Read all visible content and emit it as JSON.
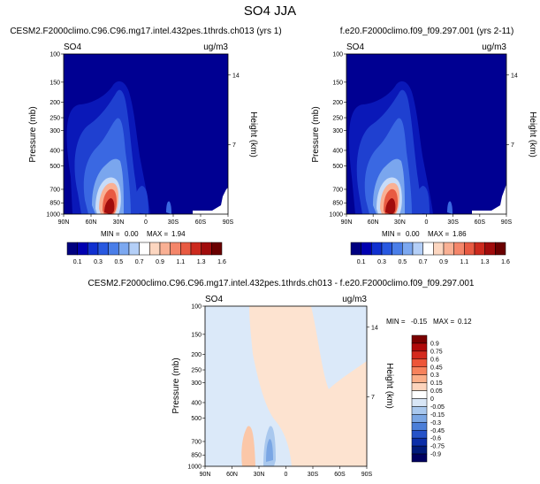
{
  "page_title": "SO4 JJA",
  "chart_data": [
    {
      "type": "heatmap",
      "title": "CESM2.F2000climo.C96.C96.mg17.intel.432pes.1thrds.ch013 (yrs 1)",
      "variable": "SO4",
      "units": "ug/m3",
      "ylabel": "Pressure (mb)",
      "ylabel_right": "Height (km)",
      "x_ticks": [
        "90N",
        "60N",
        "30N",
        "0",
        "30S",
        "60S",
        "90S"
      ],
      "y_ticks": [
        "100",
        "150",
        "200",
        "250",
        "300",
        "400",
        "500",
        "700",
        "850",
        "1000"
      ],
      "y_right_ticks": [
        "14",
        "7"
      ],
      "min_label": "MIN =",
      "min_value": "0.00",
      "max_label": "MAX =",
      "max_value": "1.94",
      "colorbar_levels": [
        "0.1",
        "0.3",
        "0.5",
        "0.7",
        "0.9",
        "1.1",
        "1.3",
        "1.6"
      ],
      "max_center": {
        "lat": 40,
        "p": 880
      }
    },
    {
      "type": "heatmap",
      "title": "f.e20.F2000climo.f09_f09.297.001 (yrs 2-11)",
      "variable": "SO4",
      "units": "ug/m3",
      "ylabel": "Pressure (mb)",
      "ylabel_right": "Height (km)",
      "x_ticks": [
        "90N",
        "60N",
        "30N",
        "0",
        "30S",
        "60S",
        "90S"
      ],
      "y_ticks": [
        "100",
        "150",
        "200",
        "250",
        "300",
        "400",
        "500",
        "700",
        "850",
        "1000"
      ],
      "y_right_ticks": [
        "14",
        "7"
      ],
      "min_label": "MIN =",
      "min_value": "0.00",
      "max_label": "MAX =",
      "max_value": "1.86",
      "colorbar_levels": [
        "0.1",
        "0.3",
        "0.5",
        "0.7",
        "0.9",
        "1.1",
        "1.3",
        "1.6"
      ],
      "max_center": {
        "lat": 40,
        "p": 880
      }
    },
    {
      "type": "heatmap",
      "title": "CESM2.F2000climo.C96.C96.mg17.intel.432pes.1thrds.ch013 - f.e20.F2000climo.f09_f09.297.001",
      "variable": "SO4",
      "units": "ug/m3",
      "ylabel": "Pressure (mb)",
      "ylabel_right": "Height (km)",
      "x_ticks": [
        "90N",
        "60N",
        "30N",
        "0",
        "30S",
        "60S",
        "90S"
      ],
      "y_ticks": [
        "100",
        "150",
        "200",
        "250",
        "300",
        "400",
        "500",
        "700",
        "850",
        "1000"
      ],
      "y_right_ticks": [
        "14",
        "7"
      ],
      "min_label": "MIN =",
      "min_value": "-0.15",
      "max_label": "MAX =",
      "max_value": "0.12",
      "colorbar_levels": [
        "0.9",
        "0.75",
        "0.6",
        "0.45",
        "0.3",
        "0.15",
        "0.05",
        "0",
        "-0.05",
        "-0.15",
        "-0.3",
        "-0.45",
        "-0.6",
        "-0.75",
        "-0.9"
      ]
    }
  ],
  "colors": {
    "background_panel": "#000092",
    "diff_positive": "#fde3d0",
    "diff_negative": "#dbe9f9",
    "seq": [
      "#000080",
      "#0000b0",
      "#1030d0",
      "#2858e0",
      "#4a7ee8",
      "#7ca8f0",
      "#b4cff7",
      "#ffffff",
      "#fcd6c0",
      "#f9b094",
      "#f4866a",
      "#e85a42",
      "#cc2a1e",
      "#a00c0c",
      "#6a0000"
    ],
    "div": [
      "#7a0000",
      "#b00a0a",
      "#d42a1e",
      "#ee5538",
      "#f7825c",
      "#fbae88",
      "#fdd4bc",
      "#ffffff",
      "#d8e6f6",
      "#a9c8ee",
      "#7aa6e4",
      "#4b7ed8",
      "#2552c8",
      "#0b2ea8",
      "#001a7a",
      "#000060"
    ]
  }
}
